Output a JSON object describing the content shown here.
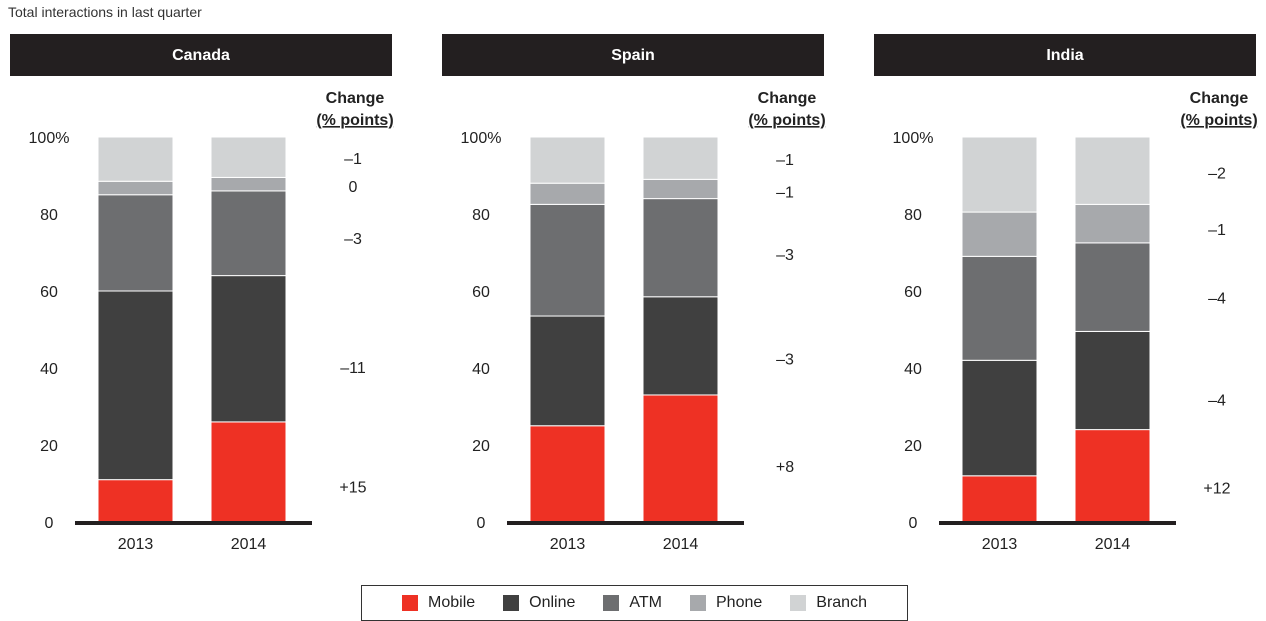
{
  "subtitle": "Total interactions in last quarter",
  "change_header": [
    "Change",
    "(% points)"
  ],
  "chart_data": {
    "type": "bar",
    "stacked": true,
    "categories": [
      "2013",
      "2014"
    ],
    "ylim": [
      0,
      100
    ],
    "yticks": [
      0,
      20,
      40,
      60,
      80,
      100
    ],
    "ytick_labels": [
      "0",
      "20",
      "40",
      "60",
      "80",
      "100%"
    ],
    "colors": {
      "Mobile": "#ee3124",
      "Online": "#404040",
      "ATM": "#6d6e70",
      "Phone": "#a7a9ac",
      "Branch": "#d1d3d4"
    },
    "legend": [
      "Mobile",
      "Online",
      "ATM",
      "Phone",
      "Branch"
    ],
    "legend_position": "bottom",
    "panels": [
      {
        "title": "Canada",
        "series": [
          {
            "name": "Mobile",
            "values": [
              11,
              26
            ]
          },
          {
            "name": "Online",
            "values": [
              49,
              38
            ]
          },
          {
            "name": "ATM",
            "values": [
              25,
              22
            ]
          },
          {
            "name": "Phone",
            "values": [
              3.5,
              3.5
            ]
          },
          {
            "name": "Branch",
            "values": [
              11.5,
              10.5
            ]
          }
        ],
        "change": [
          "+15",
          "–11",
          "–3",
          "0",
          "–1"
        ]
      },
      {
        "title": "Spain",
        "series": [
          {
            "name": "Mobile",
            "values": [
              25,
              33
            ]
          },
          {
            "name": "Online",
            "values": [
              28.5,
              25.5
            ]
          },
          {
            "name": "ATM",
            "values": [
              29,
              25.5
            ]
          },
          {
            "name": "Phone",
            "values": [
              5.5,
              5
            ]
          },
          {
            "name": "Branch",
            "values": [
              12,
              11
            ]
          }
        ],
        "change": [
          "+8",
          "–3",
          "–3",
          "–1",
          "–1"
        ]
      },
      {
        "title": "India",
        "series": [
          {
            "name": "Mobile",
            "values": [
              12,
              24
            ]
          },
          {
            "name": "Online",
            "values": [
              30,
              25.5
            ]
          },
          {
            "name": "ATM",
            "values": [
              27,
              23
            ]
          },
          {
            "name": "Phone",
            "values": [
              11.5,
              10
            ]
          },
          {
            "name": "Branch",
            "values": [
              19.5,
              17.5
            ]
          }
        ],
        "change": [
          "+12",
          "–4",
          "–4",
          "–1",
          "–2"
        ]
      }
    ]
  }
}
